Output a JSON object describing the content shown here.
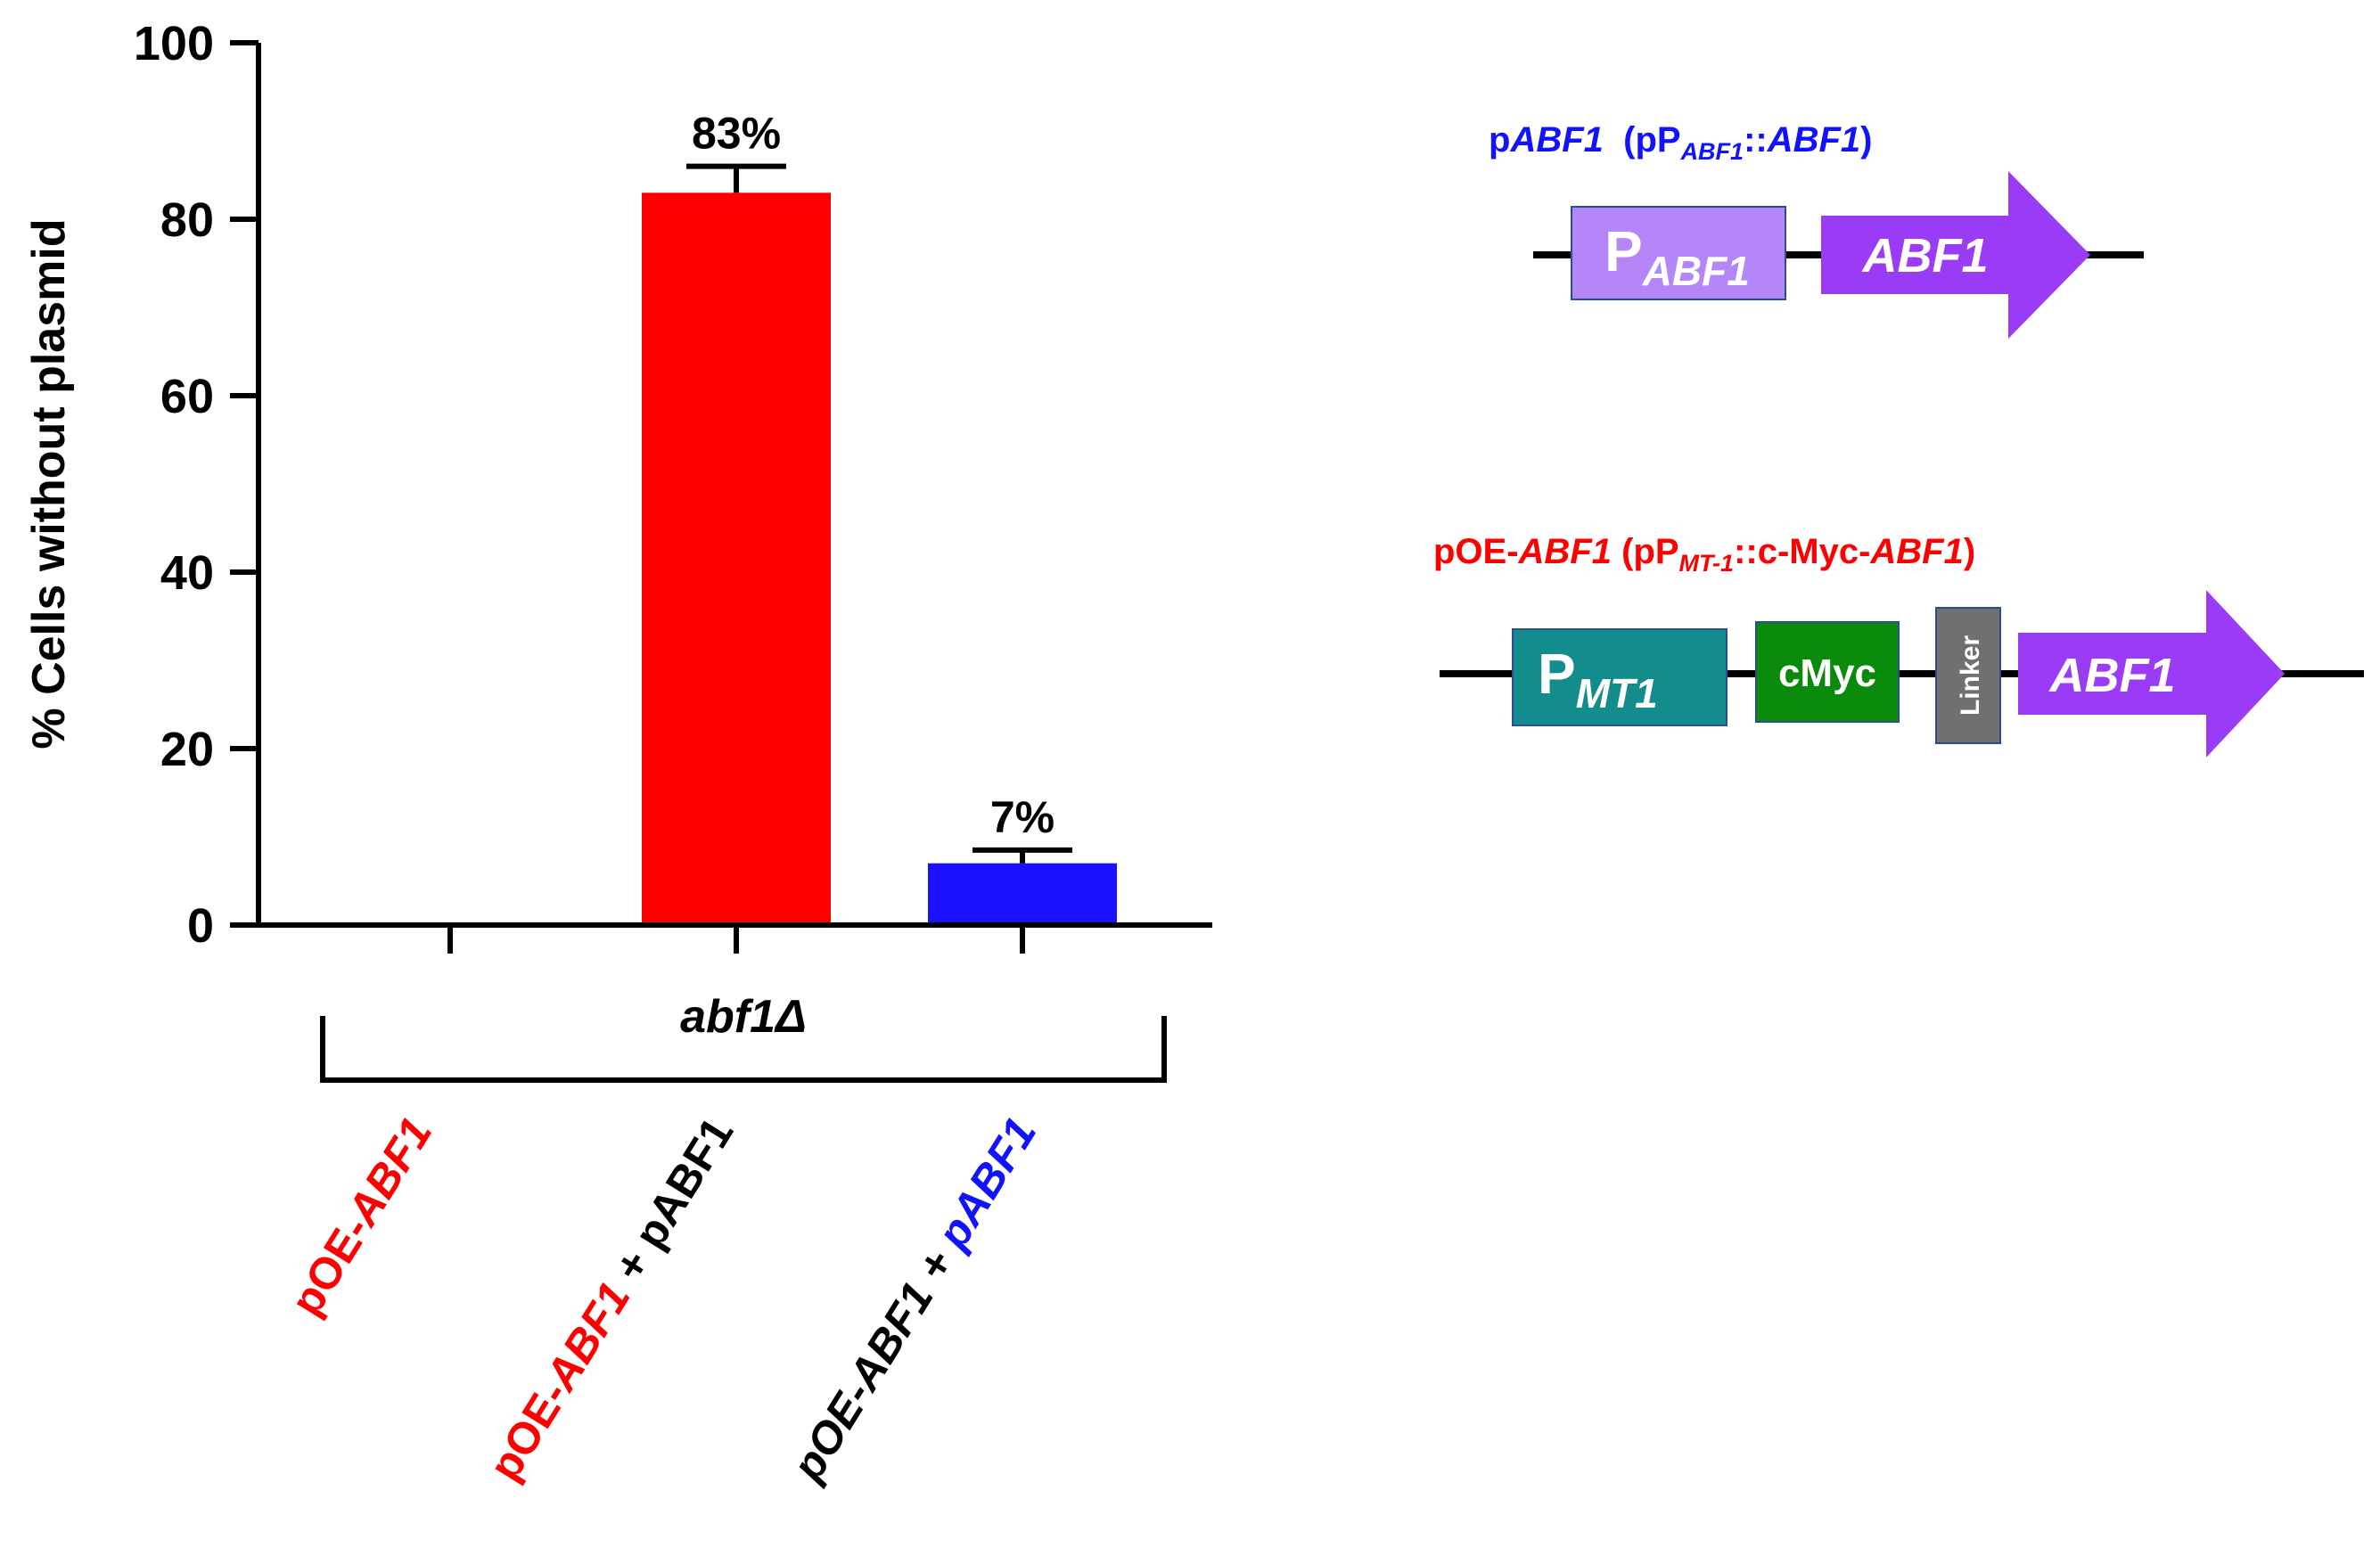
{
  "chart_data": {
    "type": "bar",
    "ylabel": "% Cells without plasmid",
    "ylim": [
      0,
      100
    ],
    "yticks": [
      0,
      20,
      40,
      60,
      80,
      100
    ],
    "group_label": "abf1Δ",
    "categories": [
      {
        "parts": [
          {
            "text": "pOE-",
            "color": "#ff0000",
            "italic": false
          },
          {
            "text": "ABF1",
            "color": "#ff0000",
            "italic": true
          }
        ]
      },
      {
        "parts": [
          {
            "text": "pOE-",
            "color": "#ff0000",
            "italic": false
          },
          {
            "text": "ABF1",
            "color": "#ff0000",
            "italic": true
          },
          {
            "text": " + pABF1",
            "color": "#000000",
            "italic": false
          }
        ]
      },
      {
        "parts": [
          {
            "text": "pOE-ABF1 + ",
            "color": "#000000",
            "italic": true
          },
          {
            "text": "pABF1",
            "color": "#1212ff",
            "italic": true
          }
        ]
      }
    ],
    "values": [
      0,
      83,
      7
    ],
    "error_upper": [
      0,
      86,
      8.5
    ],
    "bar_colors": [
      "#ff0000",
      "#ff0000",
      "#1b10ff"
    ],
    "data_labels": [
      "",
      "83%",
      "7%"
    ]
  },
  "diagrams": {
    "pabf1": {
      "title_parts": [
        {
          "text": "p",
          "italic": false,
          "sub": false
        },
        {
          "text": "ABF1",
          "italic": true,
          "sub": false
        },
        {
          "text": "  (pP",
          "italic": false,
          "sub": false
        },
        {
          "text": "ABF1",
          "italic": true,
          "sub": true
        },
        {
          "text": "::",
          "italic": false,
          "sub": false
        },
        {
          "text": "ABF1",
          "italic": true,
          "sub": false
        },
        {
          "text": ")",
          "italic": false,
          "sub": false
        }
      ],
      "title_color": "#1212ff",
      "promoter_main": "P",
      "promoter_sub": "ABF1",
      "promoter_color": "#b586f7",
      "gene_label": "ABF1",
      "gene_color": "#9a3cf5"
    },
    "poe": {
      "title_parts": [
        {
          "text": "pOE-",
          "italic": false,
          "sub": false
        },
        {
          "text": "ABF1",
          "italic": true,
          "sub": false
        },
        {
          "text": " (pP",
          "italic": false,
          "sub": false
        },
        {
          "text": "MT-1",
          "italic": true,
          "sub": true
        },
        {
          "text": "::c-Myc-",
          "italic": false,
          "sub": false
        },
        {
          "text": "ABF1",
          "italic": true,
          "sub": false
        },
        {
          "text": ")",
          "italic": false,
          "sub": false
        }
      ],
      "title_color": "#ff0000",
      "promoter_main": "P",
      "promoter_sub": "MT1",
      "promoter_color": "#128c8c",
      "tag_label": "cMyc",
      "tag_color": "#0a8a0a",
      "linker_label": "Linker",
      "linker_color": "#707070",
      "gene_label": "ABF1",
      "gene_color": "#9a3cf5"
    }
  }
}
